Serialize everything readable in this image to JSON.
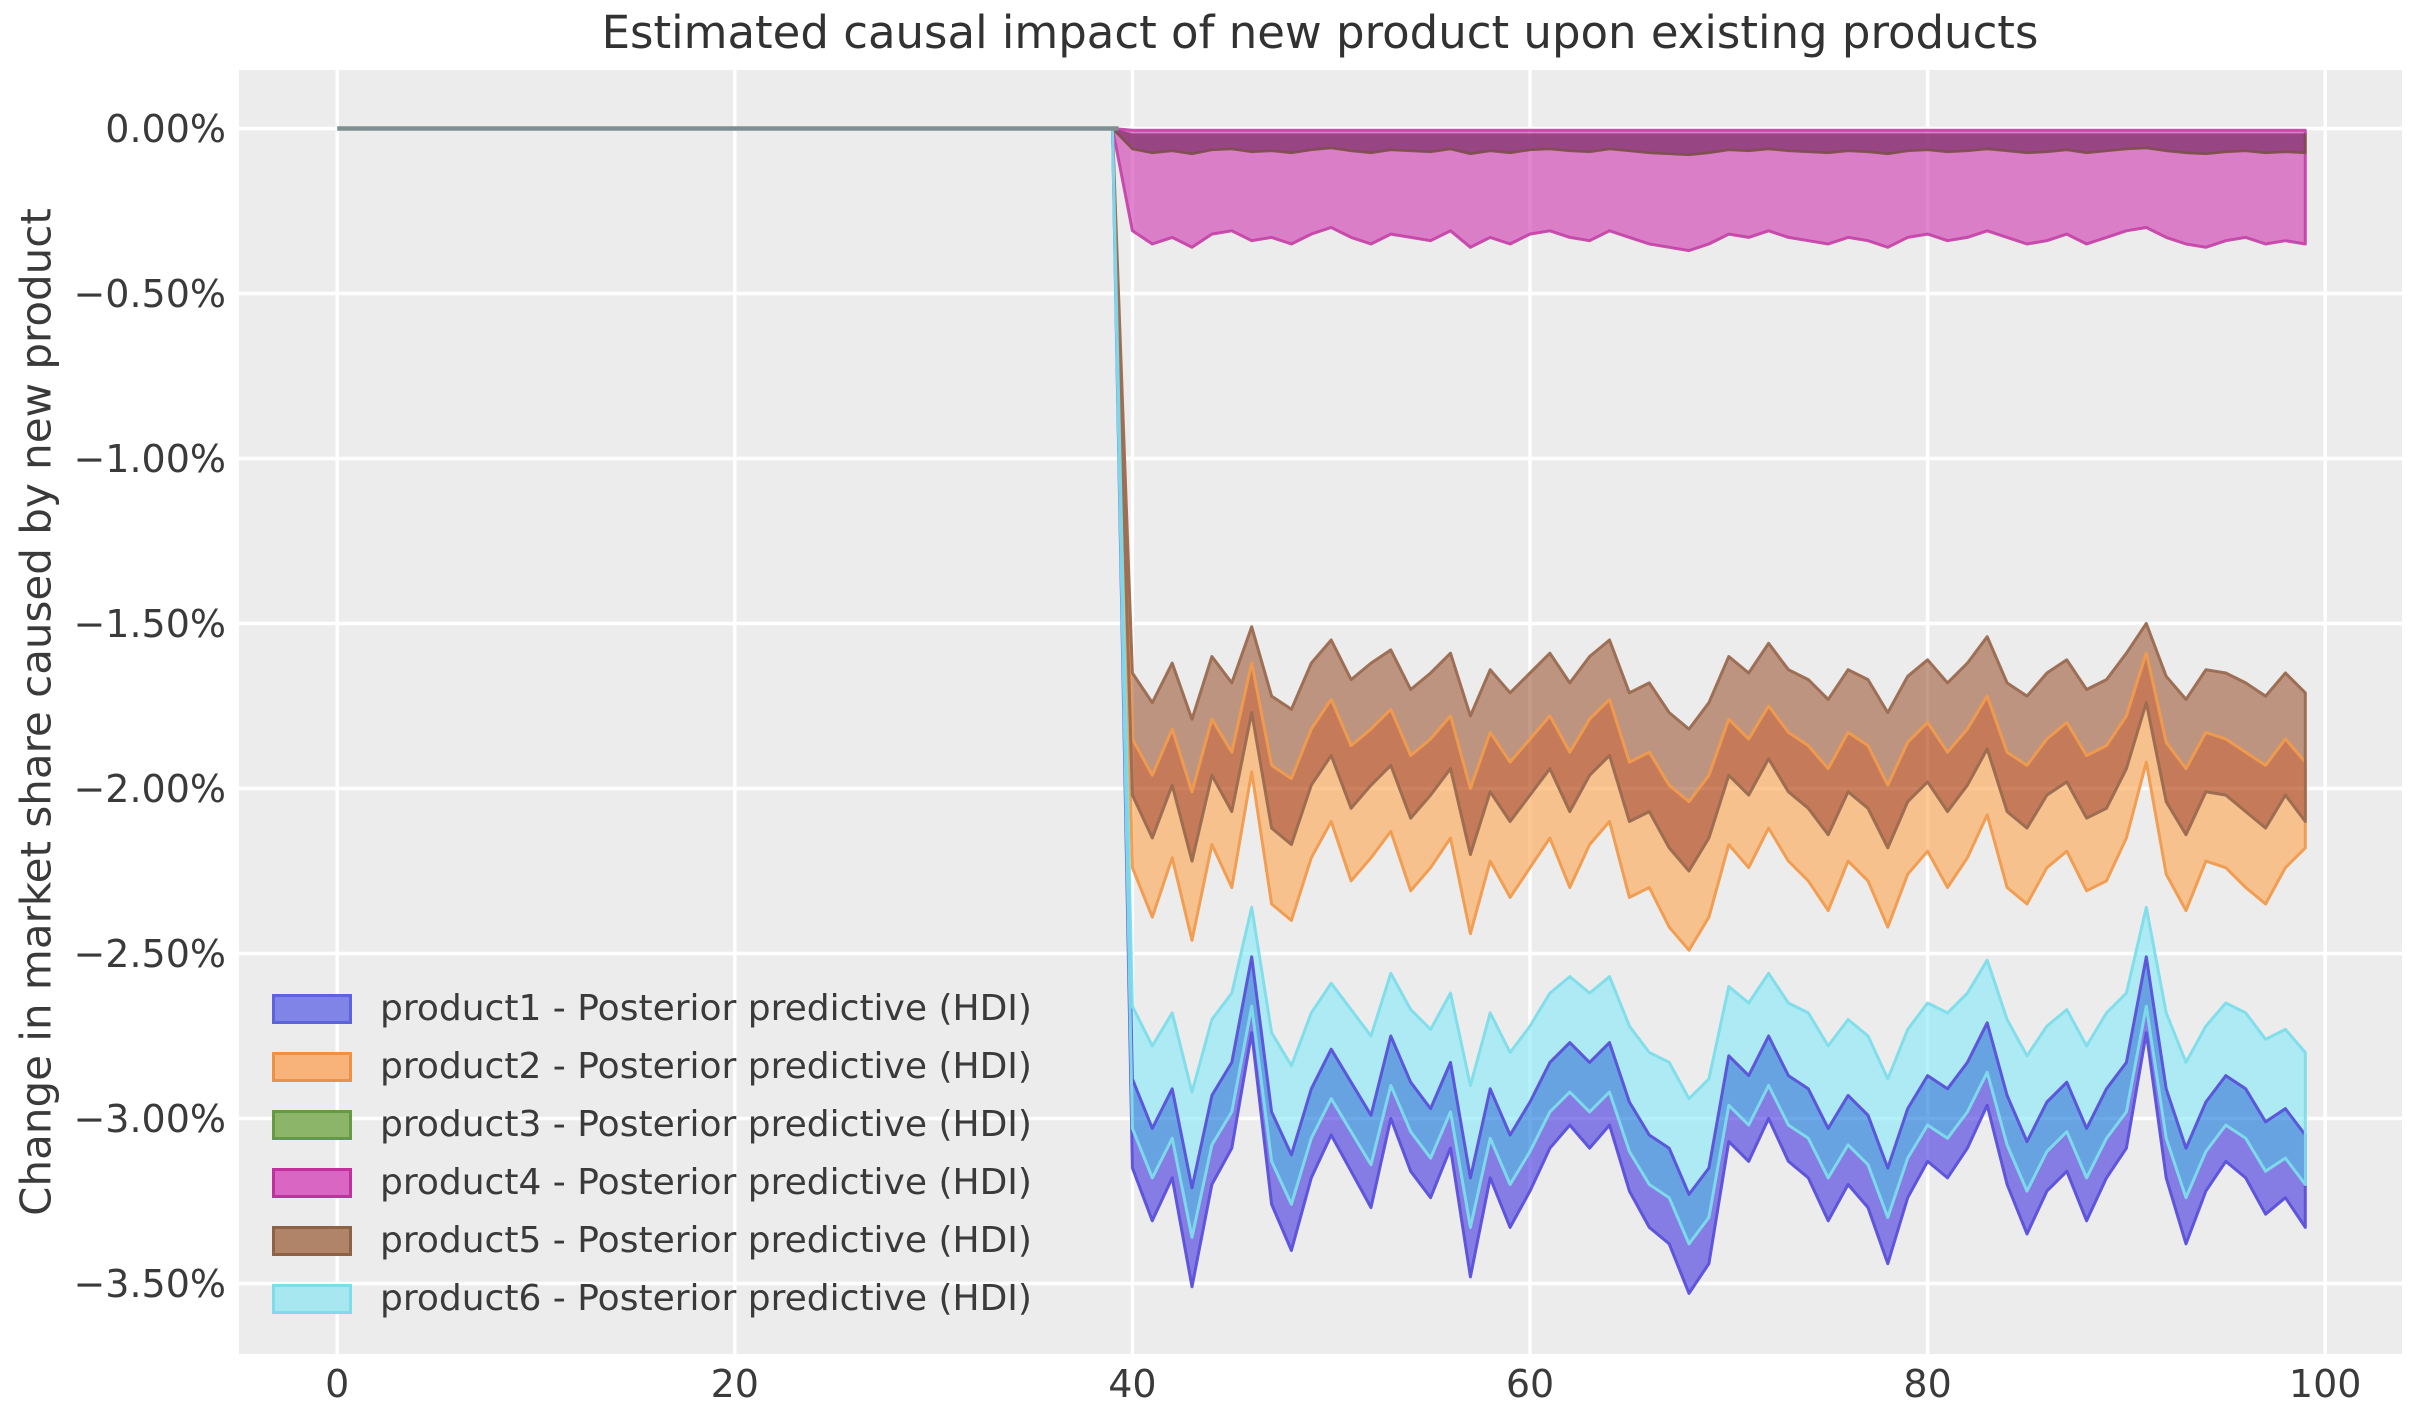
{
  "title": "Estimated causal impact of new product upon existing products",
  "ylabel": "Change in market share caused by new product",
  "axes": {
    "xtick_values": [
      0,
      20,
      40,
      60,
      80,
      100
    ],
    "xtick_labels": [
      "0",
      "20",
      "40",
      "60",
      "80",
      "100"
    ],
    "ytick_values": [
      0,
      -0.5,
      -1.0,
      -1.5,
      -2.0,
      -2.5,
      -3.0,
      -3.5
    ],
    "ytick_labels": [
      "0.00%",
      "−0.50%",
      "−1.00%",
      "−1.50%",
      "−2.00%",
      "−2.50%",
      "−3.00%",
      "−3.50%"
    ],
    "grid": true
  },
  "colors": {
    "page_bg": "#ffffff",
    "plot_bg": "#ececec",
    "grid": "#ffffff",
    "text": "#3a3a3a",
    "pre_period_line": "#7e8f91",
    "region_fills": {
      "pink_band": "rgba(210,67,181,0.65)",
      "green_pink_overlap": "rgba(116,39,95,0.65)",
      "brown_only": "rgba(164,101,70,0.65)",
      "brown_orange_overlap": "rgba(176,62,10,0.65)",
      "orange_only": "rgba(253,170,91,0.65)",
      "cyan_only": "rgba(142,233,247,0.65)",
      "blue_cyan_overlap": "rgba(33,124,219,0.65)",
      "blue_only": "rgba(79,64,225,0.65)"
    },
    "edge_lines": {
      "pink": "rgba(196,63,165,0.9)",
      "green": "rgba(122,80,70,0.9)",
      "orange": "rgba(240,155,78,0.95)",
      "brown": "rgba(154,106,80,0.95)",
      "blue": "rgba(90,80,218,0.95)",
      "cyan": "rgba(126,221,234,0.95)"
    }
  },
  "legend": {
    "items": [
      {
        "name": "product1",
        "label": "product1 - Posterior predictive (HDI)",
        "fill": "#8084e6",
        "border": "#5e63dc"
      },
      {
        "name": "product2",
        "label": "product2 - Posterior predictive (HDI)",
        "fill": "#f7b379",
        "border": "#ee9145"
      },
      {
        "name": "product3",
        "label": "product3 - Posterior predictive (HDI)",
        "fill": "#8db56a",
        "border": "#649a43"
      },
      {
        "name": "product4",
        "label": "product4 - Posterior predictive (HDI)",
        "fill": "#d966c2",
        "border": "#c2309e"
      },
      {
        "name": "product5",
        "label": "product5 - Posterior predictive (HDI)",
        "fill": "#b08468",
        "border": "#8f6145"
      },
      {
        "name": "product6",
        "label": "product6 - Posterior predictive (HDI)",
        "fill": "#a7e8f0",
        "border": "#7fdce9"
      }
    ]
  },
  "chart_data": {
    "type": "area",
    "title": "Estimated causal impact of new product upon existing products",
    "ylabel": "Change in market share caused by new product",
    "units": "percent",
    "treatment_time": 40,
    "pre_period": {
      "x_start": 0,
      "x_end": 39,
      "value": 0
    },
    "xlim": [
      -4.9,
      103.8
    ],
    "ylim": [
      -3.715,
      0.176
    ],
    "x": [
      40,
      41,
      42,
      43,
      44,
      45,
      46,
      47,
      48,
      49,
      50,
      51,
      52,
      53,
      54,
      55,
      56,
      57,
      58,
      59,
      60,
      61,
      62,
      63,
      64,
      65,
      66,
      67,
      68,
      69,
      70,
      71,
      72,
      73,
      74,
      75,
      76,
      77,
      78,
      79,
      80,
      81,
      82,
      83,
      84,
      85,
      86,
      87,
      88,
      89,
      90,
      91,
      92,
      93,
      94,
      95,
      96,
      97,
      98,
      99
    ],
    "series": [
      {
        "name": "product1",
        "hdi_upper": [
          -2.88,
          -3.03,
          -2.91,
          -3.21,
          -2.93,
          -2.83,
          -2.51,
          -2.98,
          -3.11,
          -2.91,
          -2.79,
          -2.89,
          -2.99,
          -2.75,
          -2.89,
          -2.97,
          -2.83,
          -3.18,
          -2.91,
          -3.05,
          -2.95,
          -2.83,
          -2.77,
          -2.83,
          -2.77,
          -2.95,
          -3.05,
          -3.09,
          -3.23,
          -3.15,
          -2.81,
          -2.87,
          -2.75,
          -2.87,
          -2.91,
          -3.03,
          -2.93,
          -2.99,
          -3.15,
          -2.97,
          -2.87,
          -2.91,
          -2.83,
          -2.71,
          -2.93,
          -3.07,
          -2.95,
          -2.89,
          -3.03,
          -2.91,
          -2.83,
          -2.51,
          -2.91,
          -3.09,
          -2.95,
          -2.87,
          -2.91,
          -3.01,
          -2.97,
          -3.05
        ],
        "hdi_lower": [
          -3.15,
          -3.31,
          -3.18,
          -3.51,
          -3.2,
          -3.09,
          -2.74,
          -3.26,
          -3.4,
          -3.18,
          -3.05,
          -3.16,
          -3.27,
          -3.0,
          -3.16,
          -3.24,
          -3.09,
          -3.48,
          -3.18,
          -3.33,
          -3.22,
          -3.09,
          -3.02,
          -3.09,
          -3.02,
          -3.22,
          -3.33,
          -3.38,
          -3.53,
          -3.44,
          -3.07,
          -3.13,
          -3.0,
          -3.13,
          -3.18,
          -3.31,
          -3.2,
          -3.27,
          -3.44,
          -3.24,
          -3.13,
          -3.18,
          -3.09,
          -2.96,
          -3.2,
          -3.35,
          -3.22,
          -3.16,
          -3.31,
          -3.18,
          -3.09,
          -2.74,
          -3.18,
          -3.38,
          -3.22,
          -3.13,
          -3.18,
          -3.29,
          -3.24,
          -3.33
        ]
      },
      {
        "name": "product2",
        "hdi_upper": [
          -1.85,
          -1.96,
          -1.82,
          -2.01,
          -1.79,
          -1.89,
          -1.62,
          -1.93,
          -1.97,
          -1.82,
          -1.73,
          -1.87,
          -1.82,
          -1.76,
          -1.9,
          -1.85,
          -1.78,
          -2.0,
          -1.83,
          -1.92,
          -1.85,
          -1.78,
          -1.89,
          -1.79,
          -1.73,
          -1.92,
          -1.89,
          -1.99,
          -2.04,
          -1.96,
          -1.79,
          -1.85,
          -1.75,
          -1.83,
          -1.87,
          -1.94,
          -1.83,
          -1.87,
          -1.99,
          -1.86,
          -1.8,
          -1.89,
          -1.82,
          -1.72,
          -1.89,
          -1.93,
          -1.85,
          -1.8,
          -1.9,
          -1.87,
          -1.78,
          -1.59,
          -1.86,
          -1.94,
          -1.83,
          -1.85,
          -1.89,
          -1.93,
          -1.85,
          -1.92
        ],
        "hdi_lower": [
          -2.24,
          -2.39,
          -2.21,
          -2.46,
          -2.17,
          -2.3,
          -1.95,
          -2.35,
          -2.4,
          -2.21,
          -2.1,
          -2.28,
          -2.21,
          -2.13,
          -2.31,
          -2.24,
          -2.15,
          -2.44,
          -2.22,
          -2.33,
          -2.24,
          -2.15,
          -2.3,
          -2.17,
          -2.1,
          -2.33,
          -2.3,
          -2.42,
          -2.49,
          -2.39,
          -2.17,
          -2.24,
          -2.12,
          -2.22,
          -2.28,
          -2.37,
          -2.22,
          -2.28,
          -2.42,
          -2.26,
          -2.19,
          -2.3,
          -2.21,
          -2.08,
          -2.3,
          -2.35,
          -2.24,
          -2.19,
          -2.31,
          -2.28,
          -2.15,
          -1.92,
          -2.26,
          -2.37,
          -2.22,
          -2.24,
          -2.3,
          -2.35,
          -2.24,
          -2.18
        ]
      },
      {
        "name": "product3",
        "hdi_upper": [
          -0.015,
          -0.015,
          -0.015,
          -0.015,
          -0.015,
          -0.015,
          -0.015,
          -0.015,
          -0.015,
          -0.015,
          -0.015,
          -0.015,
          -0.015,
          -0.015,
          -0.015,
          -0.015,
          -0.015,
          -0.015,
          -0.015,
          -0.015,
          -0.015,
          -0.015,
          -0.015,
          -0.015,
          -0.015,
          -0.015,
          -0.015,
          -0.015,
          -0.015,
          -0.015,
          -0.015,
          -0.015,
          -0.015,
          -0.015,
          -0.015,
          -0.015,
          -0.015,
          -0.015,
          -0.015,
          -0.015,
          -0.015,
          -0.015,
          -0.015,
          -0.015,
          -0.015,
          -0.015,
          -0.015,
          -0.015,
          -0.015,
          -0.015,
          -0.015,
          -0.015,
          -0.015,
          -0.015,
          -0.015,
          -0.015,
          -0.015,
          -0.015,
          -0.015,
          -0.015
        ],
        "hdi_lower": [
          -0.062,
          -0.074,
          -0.068,
          -0.077,
          -0.065,
          -0.062,
          -0.071,
          -0.068,
          -0.074,
          -0.065,
          -0.059,
          -0.068,
          -0.074,
          -0.065,
          -0.068,
          -0.071,
          -0.062,
          -0.077,
          -0.068,
          -0.074,
          -0.065,
          -0.062,
          -0.068,
          -0.071,
          -0.062,
          -0.068,
          -0.074,
          -0.077,
          -0.08,
          -0.074,
          -0.065,
          -0.068,
          -0.062,
          -0.068,
          -0.071,
          -0.074,
          -0.068,
          -0.071,
          -0.077,
          -0.068,
          -0.065,
          -0.071,
          -0.068,
          -0.062,
          -0.068,
          -0.074,
          -0.071,
          -0.065,
          -0.074,
          -0.068,
          -0.062,
          -0.059,
          -0.068,
          -0.074,
          -0.077,
          -0.071,
          -0.068,
          -0.074,
          -0.071,
          -0.074
        ]
      },
      {
        "name": "product4",
        "hdi_upper": [
          -0.005,
          -0.005,
          -0.005,
          -0.005,
          -0.005,
          -0.005,
          -0.005,
          -0.005,
          -0.005,
          -0.005,
          -0.005,
          -0.005,
          -0.005,
          -0.005,
          -0.005,
          -0.005,
          -0.005,
          -0.005,
          -0.005,
          -0.005,
          -0.005,
          -0.005,
          -0.005,
          -0.005,
          -0.005,
          -0.005,
          -0.005,
          -0.005,
          -0.005,
          -0.005,
          -0.005,
          -0.005,
          -0.005,
          -0.005,
          -0.005,
          -0.005,
          -0.005,
          -0.005,
          -0.005,
          -0.005,
          -0.005,
          -0.005,
          -0.005,
          -0.005,
          -0.005,
          -0.005,
          -0.005,
          -0.005,
          -0.005,
          -0.005,
          -0.005,
          -0.005,
          -0.005,
          -0.005,
          -0.005,
          -0.005,
          -0.005,
          -0.005,
          -0.005,
          -0.005
        ],
        "hdi_lower": [
          -0.31,
          -0.35,
          -0.33,
          -0.36,
          -0.32,
          -0.31,
          -0.34,
          -0.33,
          -0.35,
          -0.32,
          -0.3,
          -0.33,
          -0.35,
          -0.32,
          -0.33,
          -0.34,
          -0.31,
          -0.36,
          -0.33,
          -0.35,
          -0.32,
          -0.31,
          -0.33,
          -0.34,
          -0.31,
          -0.33,
          -0.35,
          -0.36,
          -0.37,
          -0.35,
          -0.32,
          -0.33,
          -0.31,
          -0.33,
          -0.34,
          -0.35,
          -0.33,
          -0.34,
          -0.36,
          -0.33,
          -0.32,
          -0.34,
          -0.33,
          -0.31,
          -0.33,
          -0.35,
          -0.34,
          -0.32,
          -0.35,
          -0.33,
          -0.31,
          -0.3,
          -0.33,
          -0.35,
          -0.36,
          -0.34,
          -0.33,
          -0.35,
          -0.34,
          -0.35
        ]
      },
      {
        "name": "product5",
        "hdi_upper": [
          -1.65,
          -1.74,
          -1.62,
          -1.79,
          -1.6,
          -1.68,
          -1.51,
          -1.72,
          -1.76,
          -1.62,
          -1.55,
          -1.67,
          -1.62,
          -1.58,
          -1.7,
          -1.65,
          -1.59,
          -1.78,
          -1.64,
          -1.71,
          -1.65,
          -1.59,
          -1.68,
          -1.6,
          -1.55,
          -1.71,
          -1.68,
          -1.77,
          -1.82,
          -1.74,
          -1.6,
          -1.65,
          -1.56,
          -1.64,
          -1.67,
          -1.73,
          -1.64,
          -1.67,
          -1.77,
          -1.66,
          -1.61,
          -1.68,
          -1.62,
          -1.54,
          -1.68,
          -1.72,
          -1.65,
          -1.61,
          -1.7,
          -1.67,
          -1.59,
          -1.5,
          -1.66,
          -1.73,
          -1.64,
          -1.65,
          -1.68,
          -1.72,
          -1.65,
          -1.71
        ],
        "hdi_lower": [
          -2.02,
          -2.15,
          -1.99,
          -2.22,
          -1.96,
          -2.07,
          -1.77,
          -2.12,
          -2.17,
          -1.99,
          -1.9,
          -2.06,
          -1.99,
          -1.93,
          -2.09,
          -2.02,
          -1.94,
          -2.2,
          -2.01,
          -2.1,
          -2.02,
          -1.94,
          -2.07,
          -1.96,
          -1.9,
          -2.1,
          -2.07,
          -2.18,
          -2.25,
          -2.15,
          -1.96,
          -2.02,
          -1.91,
          -2.01,
          -2.06,
          -2.14,
          -2.01,
          -2.06,
          -2.18,
          -2.04,
          -1.98,
          -2.07,
          -1.99,
          -1.88,
          -2.07,
          -2.12,
          -2.02,
          -1.98,
          -2.09,
          -2.06,
          -1.94,
          -1.74,
          -2.04,
          -2.14,
          -2.01,
          -2.02,
          -2.07,
          -2.12,
          -2.02,
          -2.1
        ]
      },
      {
        "name": "product6",
        "hdi_upper": [
          -2.66,
          -2.78,
          -2.68,
          -2.92,
          -2.7,
          -2.62,
          -2.36,
          -2.74,
          -2.84,
          -2.68,
          -2.59,
          -2.67,
          -2.75,
          -2.56,
          -2.67,
          -2.73,
          -2.62,
          -2.9,
          -2.68,
          -2.8,
          -2.72,
          -2.62,
          -2.57,
          -2.62,
          -2.57,
          -2.72,
          -2.8,
          -2.83,
          -2.94,
          -2.88,
          -2.6,
          -2.65,
          -2.56,
          -2.65,
          -2.68,
          -2.78,
          -2.7,
          -2.75,
          -2.88,
          -2.73,
          -2.65,
          -2.68,
          -2.62,
          -2.52,
          -2.7,
          -2.81,
          -2.72,
          -2.67,
          -2.78,
          -2.68,
          -2.62,
          -2.36,
          -2.68,
          -2.83,
          -2.72,
          -2.65,
          -2.68,
          -2.76,
          -2.73,
          -2.8
        ],
        "hdi_lower": [
          -3.03,
          -3.18,
          -3.06,
          -3.36,
          -3.08,
          -2.98,
          -2.66,
          -3.13,
          -3.26,
          -3.06,
          -2.94,
          -3.04,
          -3.14,
          -2.9,
          -3.04,
          -3.12,
          -2.98,
          -3.33,
          -3.06,
          -3.2,
          -3.1,
          -2.98,
          -2.92,
          -2.98,
          -2.92,
          -3.1,
          -3.2,
          -3.24,
          -3.38,
          -3.3,
          -2.96,
          -3.02,
          -2.9,
          -3.02,
          -3.06,
          -3.18,
          -3.08,
          -3.14,
          -3.3,
          -3.12,
          -3.02,
          -3.06,
          -2.98,
          -2.86,
          -3.08,
          -3.22,
          -3.1,
          -3.04,
          -3.18,
          -3.06,
          -2.98,
          -2.66,
          -3.06,
          -3.24,
          -3.1,
          -3.02,
          -3.06,
          -3.16,
          -3.12,
          -3.2
        ]
      }
    ]
  }
}
